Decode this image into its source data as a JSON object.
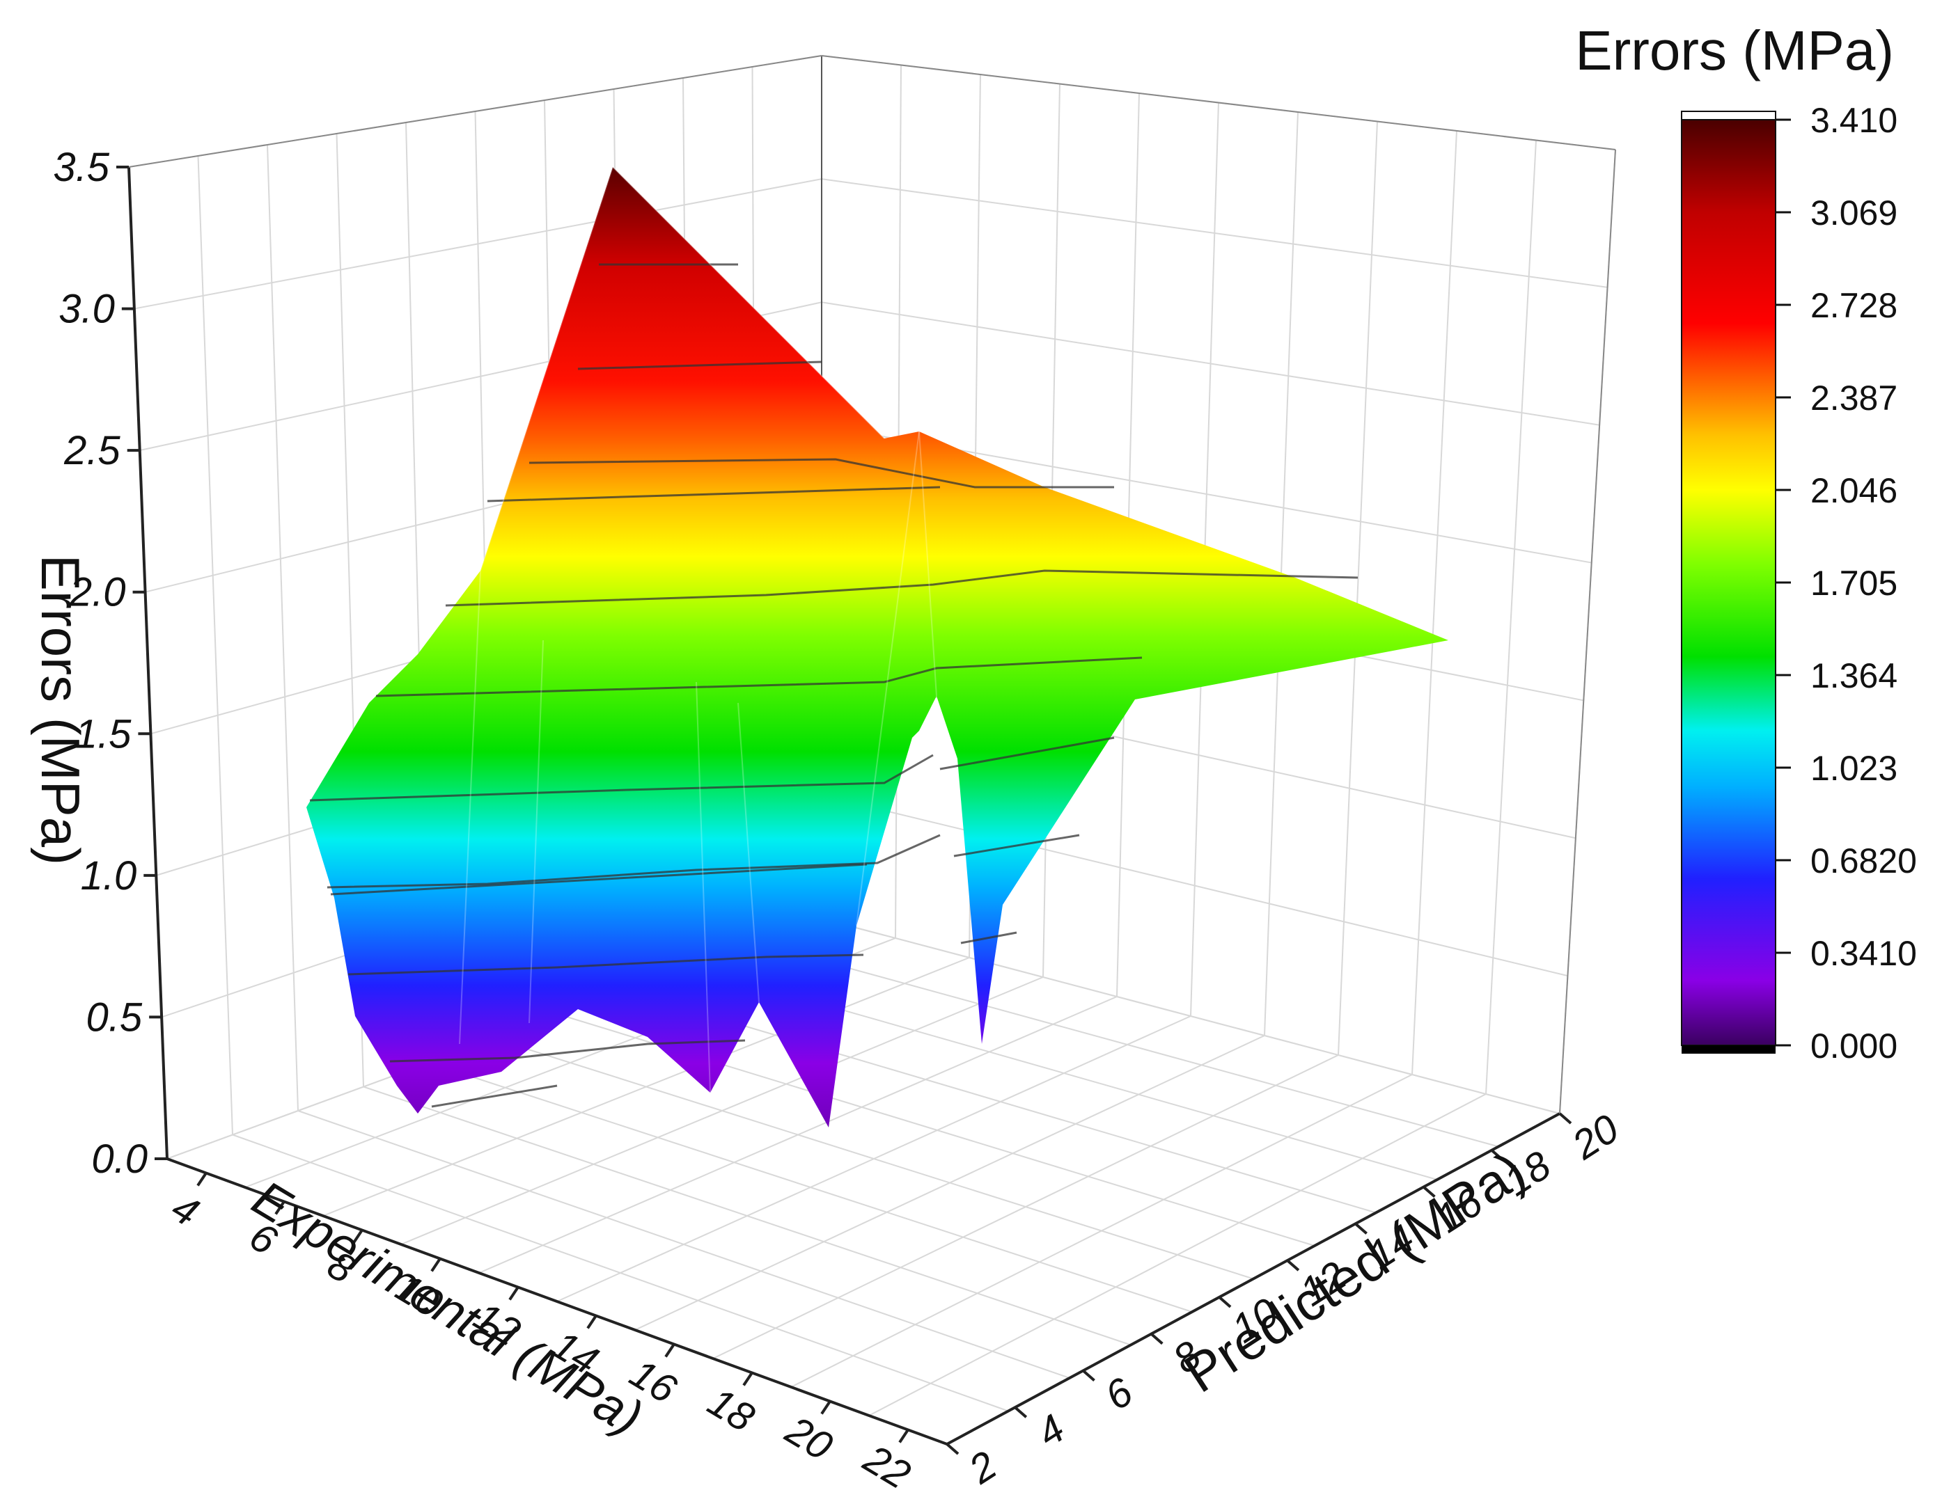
{
  "chart_data": {
    "type": "surface3d",
    "title": "",
    "xlabel": "Experimental (MPa)",
    "ylabel": "Predicted (MPa)",
    "zlabel": "Errors (MPa)",
    "x_ticks": [
      "4",
      "6",
      "8",
      "10",
      "12",
      "14",
      "16",
      "18",
      "20",
      "22"
    ],
    "y_ticks": [
      "2",
      "4",
      "6",
      "8",
      "10",
      "12",
      "14",
      "16",
      "18",
      "20"
    ],
    "z_ticks": [
      "0.0",
      "0.5",
      "1.0",
      "1.5",
      "2.0",
      "2.5",
      "3.0",
      "3.5"
    ],
    "xlim": [
      3,
      23
    ],
    "ylim": [
      2,
      20
    ],
    "zlim": [
      0,
      3.5
    ],
    "grid": true,
    "colorbar": {
      "title": "Errors (MPa)",
      "labels": [
        "3.410",
        "3.069",
        "2.728",
        "2.387",
        "2.046",
        "1.705",
        "1.364",
        "1.023",
        "0.6820",
        "0.3410",
        "0.000"
      ],
      "range": [
        0,
        3.41
      ],
      "colormap": [
        "#4b0082",
        "#8a00e6",
        "#2020ff",
        "#00b0ff",
        "#00f0f0",
        "#00e000",
        "#80ff00",
        "#ffff00",
        "#ffa000",
        "#ff2000",
        "#e00000",
        "#a00000",
        "#5a0000"
      ]
    },
    "surface": {
      "description_rows_by_experimental": true,
      "rows": [
        {
          "x": 3.5,
          "points": [
            [
              2,
              1.3
            ],
            [
              3,
              0.65
            ],
            [
              4,
              0.35
            ]
          ]
        },
        {
          "x": 5,
          "points": [
            [
              2,
              1.7
            ],
            [
              3.5,
              0.55
            ],
            [
              4.5,
              0.22
            ]
          ]
        },
        {
          "x": 7,
          "points": [
            [
              2,
              1.9
            ],
            [
              4,
              0.9
            ],
            [
              5,
              0.28
            ]
          ]
        },
        {
          "x": 9,
          "points": [
            [
              2,
              2.25
            ],
            [
              5,
              1.2
            ],
            [
              6,
              0.35
            ]
          ]
        },
        {
          "x": 12,
          "points": [
            [
              2,
              3.4
            ],
            [
              6,
              1.5
            ],
            [
              7,
              0.6
            ]
          ]
        },
        {
          "x": 14,
          "points": [
            [
              2,
              2.2
            ],
            [
              8,
              1.6
            ],
            [
              9,
              0.1
            ]
          ]
        },
        {
          "x": 16,
          "points": [
            [
              2,
              2.3
            ],
            [
              10,
              1.7
            ],
            [
              11,
              0.12
            ]
          ]
        },
        {
          "x": 18,
          "points": [
            [
              2,
              2.4
            ],
            [
              12,
              1.8
            ],
            [
              13,
              0.9
            ]
          ]
        },
        {
          "x": 19,
          "points": [
            [
              2,
              2.3
            ],
            [
              14,
              1.9
            ],
            [
              15,
              0.2
            ]
          ]
        },
        {
          "x": 20,
          "points": [
            [
              2,
              2.2
            ],
            [
              16,
              1.8
            ],
            [
              17,
              0.5
            ]
          ]
        },
        {
          "x": 22,
          "points": [
            [
              2,
              1.9
            ],
            [
              19,
              1.85
            ],
            [
              20,
              1.7
            ]
          ]
        }
      ]
    }
  }
}
